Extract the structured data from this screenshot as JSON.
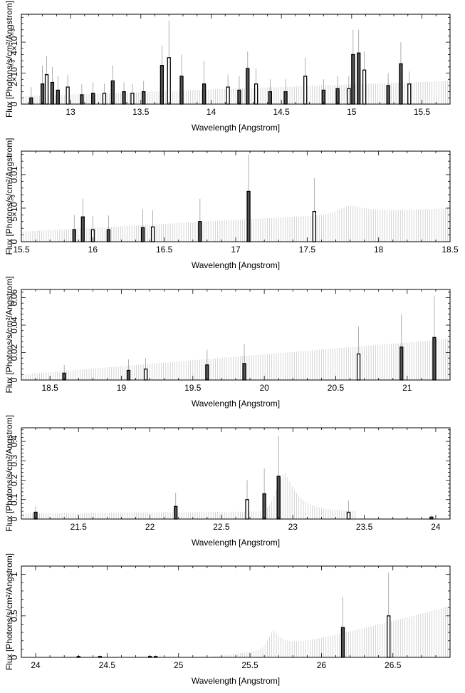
{
  "chart_data": [
    {
      "type": "bar",
      "xlabel": "Wavelength [Angstrom]",
      "ylabel": "Flux [Photons/s/cm²/Angstrom]",
      "xlim": [
        12.65,
        15.7
      ],
      "ylim": [
        0,
        0.0058
      ],
      "xticks": [
        13,
        13.5,
        14,
        14.5,
        15,
        15.5
      ],
      "xtick_labels": [
        "13",
        "13.5",
        "14",
        "14.5",
        "15",
        "15.5"
      ],
      "yticks": [
        0,
        0.002,
        0.004
      ],
      "ytick_labels": [
        "0",
        "2×10⁻³",
        "4×10⁻³"
      ],
      "grid": false,
      "background": {
        "start": 0.0005,
        "end": 0.0015,
        "bumps": []
      },
      "lines": [
        {
          "x": 12.72,
          "y": 0.0004,
          "err": 0.0007
        },
        {
          "x": 12.8,
          "y": 0.0013,
          "err": 0.0012
        },
        {
          "x": 12.83,
          "y": 0.0019,
          "err": 0.0012
        },
        {
          "x": 12.87,
          "y": 0.0014,
          "err": 0.001
        },
        {
          "x": 12.91,
          "y": 0.0009,
          "err": 0.0009
        },
        {
          "x": 12.98,
          "y": 0.0011,
          "err": 0.0008
        },
        {
          "x": 13.08,
          "y": 0.0006,
          "err": 0.0007
        },
        {
          "x": 13.16,
          "y": 0.0007,
          "err": 0.0007
        },
        {
          "x": 13.24,
          "y": 0.0007,
          "err": 0.0006
        },
        {
          "x": 13.3,
          "y": 0.0015,
          "err": 0.001
        },
        {
          "x": 13.38,
          "y": 0.0008,
          "err": 0.0006
        },
        {
          "x": 13.44,
          "y": 0.0007,
          "err": 0.0006
        },
        {
          "x": 13.52,
          "y": 0.0008,
          "err": 0.0007
        },
        {
          "x": 13.65,
          "y": 0.0025,
          "err": 0.0013
        },
        {
          "x": 13.7,
          "y": 0.003,
          "err": 0.0024
        },
        {
          "x": 13.79,
          "y": 0.0018,
          "err": 0.0014
        },
        {
          "x": 13.95,
          "y": 0.0013,
          "err": 0.0015
        },
        {
          "x": 14.12,
          "y": 0.0011,
          "err": 0.0008
        },
        {
          "x": 14.2,
          "y": 0.0009,
          "err": 0.0009
        },
        {
          "x": 14.26,
          "y": 0.0023,
          "err": 0.0011
        },
        {
          "x": 14.32,
          "y": 0.0013,
          "err": 0.001
        },
        {
          "x": 14.42,
          "y": 0.0008,
          "err": 0.0008
        },
        {
          "x": 14.53,
          "y": 0.0008,
          "err": 0.0008
        },
        {
          "x": 14.67,
          "y": 0.0018,
          "err": 0.0012
        },
        {
          "x": 14.8,
          "y": 0.0009,
          "err": 0.0007
        },
        {
          "x": 14.9,
          "y": 0.001,
          "err": 0.0008
        },
        {
          "x": 14.98,
          "y": 0.001,
          "err": 0.0008
        },
        {
          "x": 15.01,
          "y": 0.0032,
          "err": 0.0016
        },
        {
          "x": 15.05,
          "y": 0.0033,
          "err": 0.0015
        },
        {
          "x": 15.09,
          "y": 0.0022,
          "err": 0.0012
        },
        {
          "x": 15.26,
          "y": 0.0012,
          "err": 0.0008
        },
        {
          "x": 15.35,
          "y": 0.0026,
          "err": 0.0014
        },
        {
          "x": 15.41,
          "y": 0.0013,
          "err": 0.0008
        }
      ]
    },
    {
      "type": "bar",
      "xlabel": "Wavelength [Angstrom]",
      "ylabel": "Flux [Photons/s/cm²/Angstrom]",
      "xlim": [
        15.5,
        18.5
      ],
      "ylim": [
        0,
        0.0135
      ],
      "xticks": [
        15.5,
        16,
        16.5,
        17,
        17.5,
        18,
        18.5
      ],
      "xtick_labels": [
        "15.5",
        "16",
        "16.5",
        "17",
        "17.5",
        "18",
        "18.5"
      ],
      "yticks": [
        0,
        0.005,
        0.01
      ],
      "ytick_labels": [
        "0",
        "5×10⁻³",
        "0.01"
      ],
      "grid": false,
      "background": {
        "start": 0.0015,
        "end": 0.005,
        "bumps": [
          {
            "x": 17.82,
            "h": 0.0012,
            "w": 0.18
          }
        ]
      },
      "lines": [
        {
          "x": 15.87,
          "y": 0.0018,
          "err": 0.0022
        },
        {
          "x": 15.93,
          "y": 0.0037,
          "err": 0.0027
        },
        {
          "x": 16.0,
          "y": 0.0018,
          "err": 0.002
        },
        {
          "x": 16.11,
          "y": 0.0018,
          "err": 0.0021
        },
        {
          "x": 16.35,
          "y": 0.0021,
          "err": 0.0027
        },
        {
          "x": 16.42,
          "y": 0.0022,
          "err": 0.0025
        },
        {
          "x": 16.75,
          "y": 0.003,
          "err": 0.0034
        },
        {
          "x": 17.09,
          "y": 0.0075,
          "err": 0.0055
        },
        {
          "x": 17.55,
          "y": 0.0045,
          "err": 0.005
        }
      ]
    },
    {
      "type": "bar",
      "xlabel": "Wavelength [Angstrom]",
      "ylabel": "Flux [Photons/s/cm²/Angstrom]",
      "xlim": [
        18.3,
        21.3
      ],
      "ylim": [
        0,
        0.066
      ],
      "xticks": [
        18.5,
        19,
        19.5,
        20,
        20.5,
        21
      ],
      "xtick_labels": [
        "18.5",
        "19",
        "19.5",
        "20",
        "20.5",
        "21"
      ],
      "yticks": [
        0,
        0.02,
        0.04,
        0.06
      ],
      "ytick_labels": [
        "0",
        "0.02",
        "0.04",
        "0.06"
      ],
      "grid": false,
      "background": {
        "start": 0.004,
        "end": 0.03,
        "bumps": []
      },
      "lines": [
        {
          "x": 18.6,
          "y": 0.005,
          "err": 0.006
        },
        {
          "x": 19.05,
          "y": 0.007,
          "err": 0.008
        },
        {
          "x": 19.17,
          "y": 0.008,
          "err": 0.008
        },
        {
          "x": 19.6,
          "y": 0.011,
          "err": 0.011
        },
        {
          "x": 19.86,
          "y": 0.012,
          "err": 0.014
        },
        {
          "x": 20.66,
          "y": 0.019,
          "err": 0.02
        },
        {
          "x": 20.96,
          "y": 0.024,
          "err": 0.024
        },
        {
          "x": 21.19,
          "y": 0.031,
          "err": 0.03
        }
      ]
    },
    {
      "type": "bar",
      "xlabel": "Wavelength [Angstrom]",
      "ylabel": "Flux [Photons/s/cm²/Angstrom]",
      "xlim": [
        21.1,
        24.1
      ],
      "ylim": [
        0,
        0.47
      ],
      "xticks": [
        21.5,
        22,
        22.5,
        23,
        23.5,
        24
      ],
      "xtick_labels": [
        "21.5",
        "22",
        "22.5",
        "23",
        "23.5",
        "24"
      ],
      "yticks": [
        0,
        0.1,
        0.2,
        0.3,
        0.4
      ],
      "ytick_labels": [
        "0",
        "0.1",
        "0.2",
        "0.3",
        "0.4"
      ],
      "grid": false,
      "background": {
        "start": 0.03,
        "end": 0.045,
        "bumps": [
          {
            "x": 22.95,
            "h": 0.2,
            "w": 0.12
          }
        ],
        "gap": [
          23.45,
          24.1
        ]
      },
      "lines": [
        {
          "x": 21.2,
          "y": 0.035,
          "err": 0.03
        },
        {
          "x": 22.18,
          "y": 0.065,
          "err": 0.07
        },
        {
          "x": 22.68,
          "y": 0.1,
          "err": 0.1
        },
        {
          "x": 22.8,
          "y": 0.13,
          "err": 0.13
        },
        {
          "x": 22.9,
          "y": 0.22,
          "err": 0.21
        },
        {
          "x": 23.39,
          "y": 0.035,
          "err": 0.06
        },
        {
          "x": 23.97,
          "y": 0.01,
          "err": 0.01
        }
      ]
    },
    {
      "type": "bar",
      "xlabel": "Wavelength [Angstrom]",
      "ylabel": "Flux [Photons/s/cm²/Angstrom]",
      "xlim": [
        23.9,
        26.9
      ],
      "ylim": [
        0,
        1.1
      ],
      "xticks": [
        24,
        24.5,
        25,
        25.5,
        26,
        26.5
      ],
      "xtick_labels": [
        "24",
        "24.5",
        "25",
        "25.5",
        "26",
        "26.5"
      ],
      "yticks": [
        0,
        0.5,
        1
      ],
      "ytick_labels": [
        "0",
        "0.5",
        "1"
      ],
      "grid": false,
      "background": {
        "start": 0.005,
        "end": 0.62,
        "bumps": [
          {
            "x": 25.67,
            "h": 0.2,
            "w": 0.08
          }
        ],
        "ramp": [
          25.2,
          26.9
        ]
      },
      "lines": [
        {
          "x": 24.3,
          "y": 0.01,
          "err": 0.02
        },
        {
          "x": 24.45,
          "y": 0.01,
          "err": 0.02
        },
        {
          "x": 24.8,
          "y": 0.01,
          "err": 0.02
        },
        {
          "x": 24.84,
          "y": 0.01,
          "err": 0.02
        },
        {
          "x": 26.15,
          "y": 0.36,
          "err": 0.37
        },
        {
          "x": 26.47,
          "y": 0.5,
          "err": 0.52
        }
      ]
    }
  ]
}
